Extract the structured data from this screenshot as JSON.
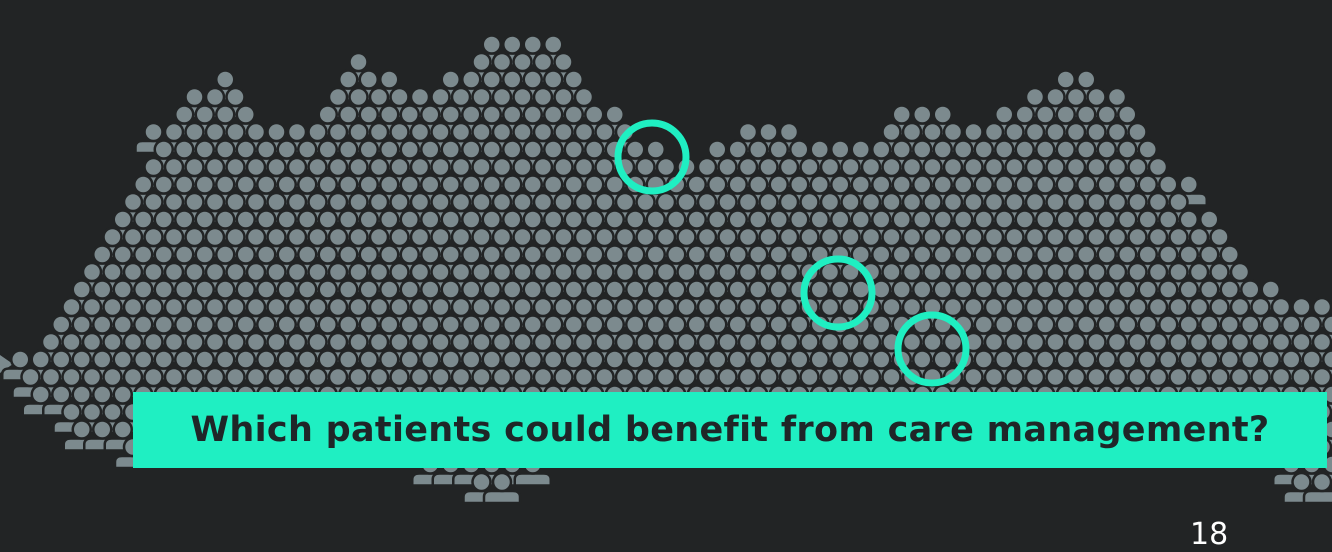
{
  "slide": {
    "question": "Which patients could benefit from care management?",
    "page_number": "18"
  },
  "colors": {
    "background": "#222425",
    "person": "#7c8a8e",
    "highlight": "#1fefc2",
    "banner_text": "#1f2628"
  },
  "crowd": {
    "icon": "person-icon",
    "highlighted_count": 3
  }
}
